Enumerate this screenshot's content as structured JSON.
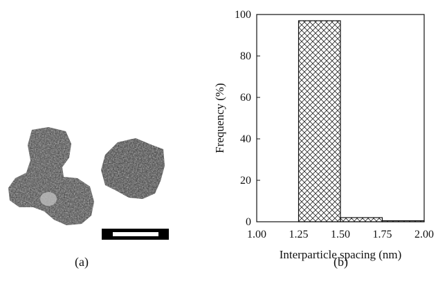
{
  "panels": {
    "a_label": "(a)",
    "b_label": "(b)"
  },
  "micrograph": {
    "description_icon": "nanoparticle-cluster-image",
    "scale_bar_icon": "scale-bar"
  },
  "chart_data": {
    "type": "bar",
    "title": "",
    "xlabel": "Interparticle spacing (nm)",
    "ylabel": "Frequency (%)",
    "bins": [
      {
        "from": 1.25,
        "to": 1.5,
        "value": 97
      },
      {
        "from": 1.5,
        "to": 1.75,
        "value": 2
      },
      {
        "from": 1.75,
        "to": 2.0,
        "value": 0.5
      }
    ],
    "xlim": [
      1.0,
      2.0
    ],
    "ylim": [
      0,
      100
    ],
    "xticks": [
      "1.00",
      "1.25",
      "1.50",
      "1.75",
      "2.00"
    ],
    "yticks": [
      "0",
      "20",
      "40",
      "60",
      "80",
      "100"
    ],
    "bar_fill": "crosshatch",
    "grid": false
  }
}
